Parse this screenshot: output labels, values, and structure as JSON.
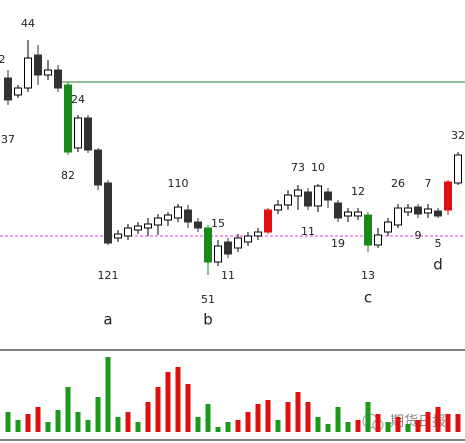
{
  "chart_data": {
    "type": "candlestick",
    "ylim": [
      0,
      340
    ],
    "open": [
      262,
      245,
      252,
      285,
      265,
      270,
      255,
      192,
      222,
      190,
      157,
      102,
      104,
      110,
      112,
      115,
      120,
      122,
      130,
      118,
      112,
      78,
      98,
      92,
      98,
      104,
      108,
      130,
      135,
      144,
      148,
      134,
      148,
      137,
      124,
      124,
      125,
      95,
      108,
      115,
      128,
      133,
      127,
      129,
      130,
      157
    ],
    "close": [
      240,
      252,
      282,
      265,
      270,
      252,
      188,
      222,
      190,
      155,
      97,
      106,
      112,
      114,
      116,
      122,
      125,
      133,
      118,
      112,
      78,
      94,
      86,
      102,
      104,
      108,
      130,
      135,
      145,
      150,
      134,
      154,
      140,
      122,
      128,
      128,
      95,
      105,
      118,
      132,
      132,
      126,
      131,
      124,
      158,
      185
    ],
    "high": [
      270,
      255,
      300,
      295,
      280,
      275,
      258,
      225,
      225,
      192,
      160,
      110,
      116,
      118,
      122,
      126,
      128,
      136,
      135,
      122,
      115,
      100,
      102,
      106,
      108,
      112,
      132,
      140,
      150,
      155,
      152,
      156,
      152,
      140,
      132,
      132,
      128,
      112,
      122,
      136,
      136,
      136,
      136,
      132,
      160,
      188
    ],
    "low": [
      235,
      242,
      248,
      255,
      260,
      248,
      185,
      188,
      187,
      150,
      95,
      98,
      100,
      106,
      104,
      105,
      114,
      118,
      112,
      108,
      65,
      74,
      82,
      88,
      94,
      100,
      106,
      126,
      130,
      130,
      130,
      128,
      132,
      118,
      118,
      120,
      88,
      92,
      104,
      112,
      124,
      122,
      122,
      122,
      125,
      155
    ],
    "colors": [
      "#333333",
      "#ffffff",
      "#ffffff",
      "#333333",
      "#ffffff",
      "#333333",
      "#1a8a1a",
      "#ffffff",
      "#333333",
      "#333333",
      "#333333",
      "#ffffff",
      "#ffffff",
      "#ffffff",
      "#ffffff",
      "#ffffff",
      "#ffffff",
      "#ffffff",
      "#333333",
      "#333333",
      "#1a8a1a",
      "#ffffff",
      "#333333",
      "#ffffff",
      "#ffffff",
      "#ffffff",
      "#e01010",
      "#ffffff",
      "#ffffff",
      "#ffffff",
      "#333333",
      "#ffffff",
      "#333333",
      "#333333",
      "#ffffff",
      "#ffffff",
      "#1a8a1a",
      "#ffffff",
      "#ffffff",
      "#ffffff",
      "#ffffff",
      "#333333",
      "#ffffff",
      "#333333",
      "#e01010",
      "#ffffff"
    ],
    "volume": [
      20,
      12,
      18,
      25,
      10,
      22,
      45,
      20,
      12,
      35,
      75,
      15,
      20,
      10,
      30,
      45,
      60,
      65,
      48,
      15,
      28,
      5,
      10,
      12,
      20,
      28,
      32,
      12,
      30,
      40,
      30,
      15,
      8,
      25,
      10,
      12,
      30,
      18,
      10,
      15,
      8,
      12,
      20,
      25,
      18,
      18
    ],
    "volume_colors": [
      "#1a9a1a",
      "#1a9a1a",
      "#e01010",
      "#e01010",
      "#1a9a1a",
      "#1a9a1a",
      "#1a9a1a",
      "#1a9a1a",
      "#1a9a1a",
      "#1a9a1a",
      "#1a9a1a",
      "#1a9a1a",
      "#e01010",
      "#1a9a1a",
      "#e01010",
      "#e01010",
      "#e01010",
      "#e01010",
      "#e01010",
      "#1a9a1a",
      "#1a9a1a",
      "#1a9a1a",
      "#1a9a1a",
      "#e01010",
      "#e01010",
      "#e01010",
      "#e01010",
      "#1a9a1a",
      "#e01010",
      "#e01010",
      "#e01010",
      "#1a9a1a",
      "#1a9a1a",
      "#1a9a1a",
      "#1a9a1a",
      "#e01010",
      "#1a9a1a",
      "#e01010",
      "#1a9a1a",
      "#e01010",
      "#1a9a1a",
      "#e01010",
      "#e01010",
      "#e01010",
      "#e01010",
      "#e01010"
    ],
    "volume_ylim": [
      0,
      90
    ],
    "hlines": [
      {
        "value": 258,
        "color": "#2e7d2e"
      },
      {
        "value": 104,
        "color": "#e040e0",
        "dashed": true
      }
    ],
    "annotations": [
      "2",
      "44",
      "37",
      "24",
      "82",
      "121",
      "110",
      "15",
      "11",
      "51",
      "73",
      "10",
      "11",
      "19",
      "12",
      "13",
      "26",
      "7",
      "9",
      "5",
      "32",
      "a",
      "b",
      "c",
      "d"
    ],
    "watermark": "期货日报"
  }
}
